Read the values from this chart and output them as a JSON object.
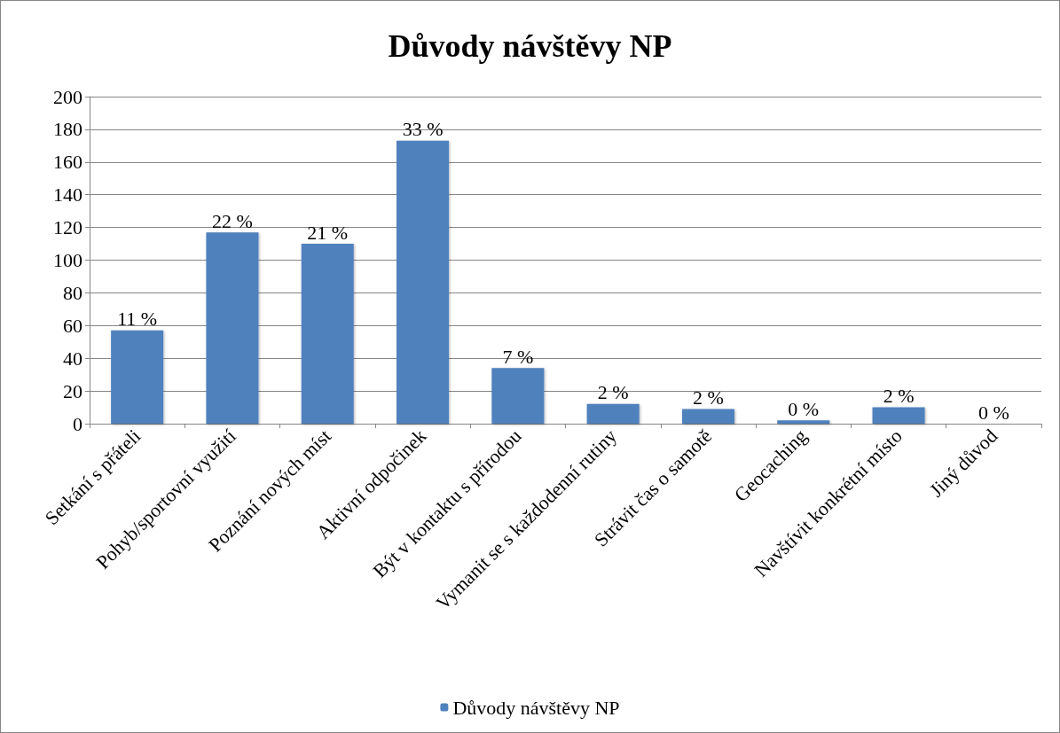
{
  "chart_data": {
    "type": "bar",
    "title": "Důvody návštěvy NP",
    "categories": [
      "Setkání s přáteli",
      "Pohyb/sportovní využití",
      "Poznání nových míst",
      "Aktivní odpočinek",
      "Být v kontaktu s přírodou",
      "Vymanit se s každodenní rutiny",
      "Strávit čas o samotě",
      "Geocaching",
      "Navštívit konkrétní místo",
      "Jiný důvod"
    ],
    "series": [
      {
        "name": "Důvody návštěvy NP",
        "color": "#4f81bd",
        "values": [
          57,
          117,
          110,
          173,
          34,
          12,
          9,
          2,
          10,
          0
        ]
      }
    ],
    "annotations": [
      {
        "text": "11 %",
        "x": "Setkání s přáteli",
        "y": 57
      },
      {
        "text": "22 %",
        "x": "Pohyb/sportovní využití",
        "y": 117
      },
      {
        "text": "21 %",
        "x": "Poznání nových míst",
        "y": 110
      },
      {
        "text": "33 %",
        "x": "Aktivní odpočinek",
        "y": 173
      },
      {
        "text": "7 %",
        "x": "Být v kontaktu s přírodou",
        "y": 34
      },
      {
        "text": "2 %",
        "x": "Vymanit se s každodenní rutiny",
        "y": 12
      },
      {
        "text": "2 %",
        "x": "Strávit čas o samotě",
        "y": 9
      },
      {
        "text": "0 %",
        "x": "Geocaching",
        "y": 2
      },
      {
        "text": "2 %",
        "x": "Navštívit konkrétní místo",
        "y": 10
      },
      {
        "text": "0 %",
        "x": "Jiný důvod",
        "y": 0
      }
    ],
    "ylim": [
      0,
      200
    ],
    "yticks": [
      0,
      20,
      40,
      60,
      80,
      100,
      120,
      140,
      160,
      180,
      200
    ],
    "grid": "y",
    "legend": "bottom"
  }
}
